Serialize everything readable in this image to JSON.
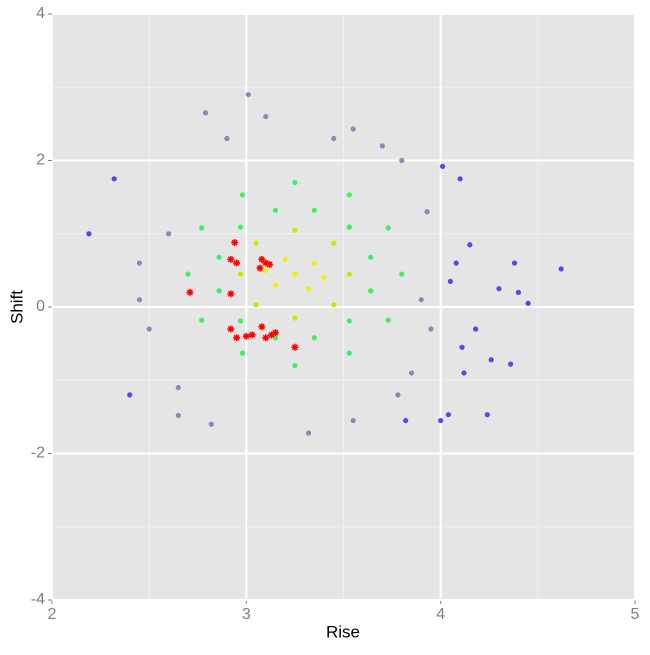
{
  "chart_data": {
    "type": "scatter",
    "x_label": "Rise",
    "y_label": "Shift",
    "xlim": [
      2,
      5
    ],
    "xticks": [
      2,
      3,
      4,
      5
    ],
    "ylim": [
      -4,
      4
    ],
    "yticks": [
      -4,
      -2,
      0,
      2,
      4
    ],
    "grid": true,
    "series": [
      {
        "color": "#6a3cf0",
        "marker": "dot",
        "x": [
          2.19,
          2.32,
          2.4,
          4.62,
          4.45,
          4.38,
          4.1,
          4.01,
          4.36,
          4.24,
          4.04,
          4.26,
          4.18,
          4.11,
          4.12,
          4.0,
          3.82,
          4.4,
          4.3,
          4.05,
          4.08,
          4.15
        ],
        "y": [
          1.0,
          1.75,
          -1.2,
          0.52,
          0.05,
          0.6,
          1.75,
          1.92,
          -0.78,
          -1.47,
          -1.47,
          -0.72,
          -0.3,
          -0.55,
          -0.9,
          -1.55,
          -1.55,
          0.2,
          0.25,
          0.35,
          0.6,
          0.85
        ]
      },
      {
        "color": "#7e8fb0",
        "marker": "dot",
        "x": [
          2.79,
          3.01,
          3.1,
          3.55,
          3.7,
          3.8,
          3.93,
          3.95,
          3.9,
          3.85,
          2.65,
          2.82,
          3.32,
          3.55,
          2.5,
          2.45,
          2.6,
          2.45,
          3.45,
          2.9,
          3.78,
          2.65
        ],
        "y": [
          2.65,
          2.9,
          2.6,
          2.43,
          2.2,
          2.0,
          1.3,
          -0.3,
          0.1,
          -0.9,
          -1.48,
          -1.6,
          -1.72,
          -1.55,
          -0.3,
          0.1,
          1.0,
          0.6,
          2.3,
          2.3,
          -1.2,
          -1.1
        ]
      },
      {
        "color": "#3ef060",
        "marker": "dot",
        "x": [
          3.8,
          3.73,
          3.53,
          3.25,
          2.98,
          2.77,
          2.7,
          2.77,
          2.98,
          3.25,
          3.53,
          3.73,
          3.64,
          3.53,
          3.35,
          3.15,
          2.97,
          2.86,
          2.86,
          2.97,
          3.15,
          3.35,
          3.53,
          3.64
        ],
        "y": [
          0.45,
          1.08,
          1.53,
          1.7,
          1.53,
          1.08,
          0.45,
          -0.18,
          -0.63,
          -0.8,
          -0.63,
          -0.18,
          0.68,
          1.09,
          1.32,
          1.32,
          1.09,
          0.68,
          0.22,
          -0.19,
          -0.42,
          -0.42,
          -0.19,
          0.22
        ]
      },
      {
        "color": "#b8f000",
        "marker": "dot",
        "x": [
          3.53,
          3.45,
          3.25,
          3.05,
          2.97,
          3.05,
          3.25,
          3.45
        ],
        "y": [
          0.45,
          0.87,
          1.05,
          0.87,
          0.45,
          0.03,
          -0.15,
          0.03
        ]
      },
      {
        "color": "#f0f000",
        "marker": "dot",
        "x": [
          3.25,
          3.35,
          3.15,
          3.2,
          3.32,
          3.1,
          3.4
        ],
        "y": [
          0.45,
          0.6,
          0.3,
          0.65,
          0.25,
          0.5,
          0.4
        ]
      },
      {
        "color": "#ff0000",
        "marker": "star",
        "x": [
          2.94,
          2.92,
          2.95,
          3.08,
          3.1,
          3.07,
          3.12,
          2.71,
          2.92,
          2.92,
          2.95,
          3.0,
          3.03,
          3.08,
          3.1,
          3.13,
          3.15,
          3.25
        ],
        "y": [
          0.88,
          0.65,
          0.6,
          0.65,
          0.6,
          0.53,
          0.58,
          0.2,
          0.18,
          -0.3,
          -0.42,
          -0.4,
          -0.38,
          -0.27,
          -0.42,
          -0.38,
          -0.35,
          -0.55
        ]
      }
    ]
  }
}
